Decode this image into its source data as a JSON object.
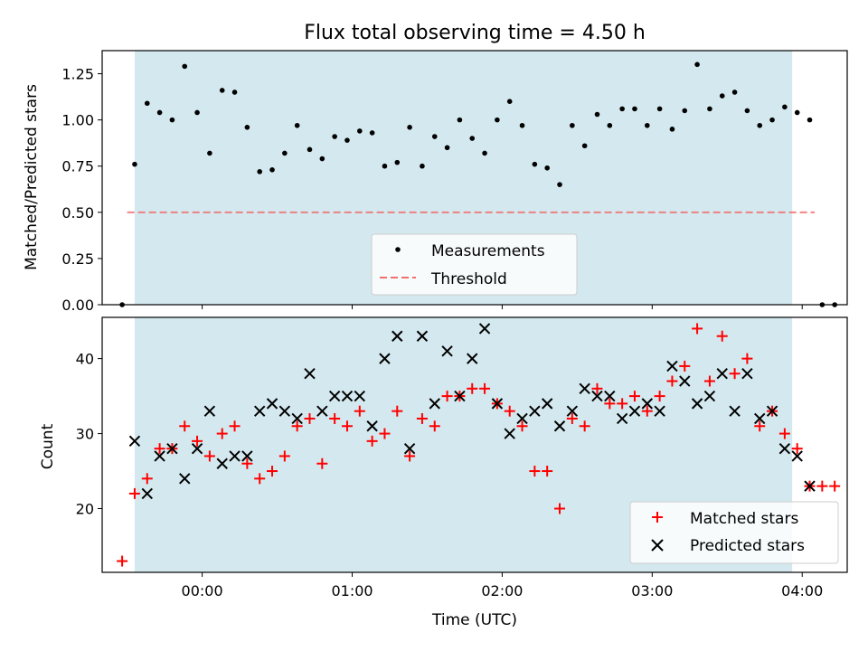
{
  "chart_data": [
    {
      "type": "scatter",
      "title": "Flux total observing time = 4.50 h",
      "ylabel": "Matched/Predicted stars",
      "xlabel": "",
      "ylim": [
        0,
        1.375
      ],
      "x_is_time": true,
      "yticks": [
        "0.00",
        "0.25",
        "0.50",
        "0.75",
        "1.00",
        "1.25"
      ],
      "observing_window": {
        "start": "23:33",
        "end": "03:56",
        "color": "#d4e9ef"
      },
      "threshold": {
        "name": "Threshold",
        "value": 0.5,
        "x_start": "23:30",
        "x_end": "04:05",
        "color": "#f07070"
      },
      "legend": {
        "position": "lower center",
        "entries": [
          "Measurements",
          "Threshold"
        ]
      },
      "series": [
        {
          "name": "Measurements",
          "color": "#000000",
          "points": [
            [
              "23:28",
              0.0
            ],
            [
              "23:33",
              0.76
            ],
            [
              "23:38",
              1.09
            ],
            [
              "23:43",
              1.04
            ],
            [
              "23:48",
              1.0
            ],
            [
              "23:53",
              1.29
            ],
            [
              "23:58",
              1.04
            ],
            [
              "00:03",
              0.82
            ],
            [
              "00:08",
              1.16
            ],
            [
              "00:13",
              1.15
            ],
            [
              "00:18",
              0.96
            ],
            [
              "00:23",
              0.72
            ],
            [
              "00:28",
              0.73
            ],
            [
              "00:33",
              0.82
            ],
            [
              "00:38",
              0.97
            ],
            [
              "00:43",
              0.84
            ],
            [
              "00:48",
              0.79
            ],
            [
              "00:53",
              0.91
            ],
            [
              "00:58",
              0.89
            ],
            [
              "01:03",
              0.94
            ],
            [
              "01:08",
              0.93
            ],
            [
              "01:13",
              0.75
            ],
            [
              "01:18",
              0.77
            ],
            [
              "01:23",
              0.96
            ],
            [
              "01:28",
              0.75
            ],
            [
              "01:33",
              0.91
            ],
            [
              "01:38",
              0.85
            ],
            [
              "01:43",
              1.0
            ],
            [
              "01:48",
              0.9
            ],
            [
              "01:53",
              0.82
            ],
            [
              "01:58",
              1.0
            ],
            [
              "02:03",
              1.1
            ],
            [
              "02:08",
              0.97
            ],
            [
              "02:13",
              0.76
            ],
            [
              "02:18",
              0.74
            ],
            [
              "02:23",
              0.65
            ],
            [
              "02:28",
              0.97
            ],
            [
              "02:33",
              0.86
            ],
            [
              "02:38",
              1.03
            ],
            [
              "02:43",
              0.97
            ],
            [
              "02:48",
              1.06
            ],
            [
              "02:53",
              1.06
            ],
            [
              "02:58",
              0.97
            ],
            [
              "03:03",
              1.06
            ],
            [
              "03:08",
              0.95
            ],
            [
              "03:13",
              1.05
            ],
            [
              "03:18",
              1.3
            ],
            [
              "03:23",
              1.06
            ],
            [
              "03:28",
              1.13
            ],
            [
              "03:33",
              1.15
            ],
            [
              "03:38",
              1.05
            ],
            [
              "03:43",
              0.97
            ],
            [
              "03:48",
              1.0
            ],
            [
              "03:53",
              1.07
            ],
            [
              "03:58",
              1.04
            ],
            [
              "04:03",
              1.0
            ],
            [
              "04:08",
              0.0
            ],
            [
              "04:13",
              0.0
            ]
          ]
        }
      ]
    },
    {
      "type": "scatter",
      "title": "",
      "ylabel": "Count",
      "xlabel": "Time (UTC)",
      "ylim": [
        11.5,
        45.5
      ],
      "yticks": [
        "20",
        "30",
        "40"
      ],
      "xticks": [
        "00:00",
        "01:00",
        "02:00",
        "03:00",
        "04:00"
      ],
      "observing_window": {
        "start": "23:33",
        "end": "03:56",
        "color": "#d4e9ef"
      },
      "legend": {
        "position": "lower right",
        "entries": [
          "Matched stars",
          "Predicted stars"
        ]
      },
      "series": [
        {
          "name": "Matched stars",
          "color": "#ff0000",
          "marker": "plus",
          "points": [
            [
              "23:28",
              13
            ],
            [
              "23:33",
              22
            ],
            [
              "23:38",
              24
            ],
            [
              "23:43",
              28
            ],
            [
              "23:48",
              28
            ],
            [
              "23:53",
              31
            ],
            [
              "23:58",
              29
            ],
            [
              "00:03",
              27
            ],
            [
              "00:08",
              30
            ],
            [
              "00:13",
              31
            ],
            [
              "00:18",
              26
            ],
            [
              "00:23",
              24
            ],
            [
              "00:28",
              25
            ],
            [
              "00:33",
              27
            ],
            [
              "00:38",
              31
            ],
            [
              "00:43",
              32
            ],
            [
              "00:48",
              26
            ],
            [
              "00:53",
              32
            ],
            [
              "00:58",
              31
            ],
            [
              "01:03",
              33
            ],
            [
              "01:08",
              29
            ],
            [
              "01:13",
              30
            ],
            [
              "01:18",
              33
            ],
            [
              "01:23",
              27
            ],
            [
              "01:28",
              32
            ],
            [
              "01:33",
              31
            ],
            [
              "01:38",
              35
            ],
            [
              "01:43",
              35
            ],
            [
              "01:48",
              36
            ],
            [
              "01:53",
              36
            ],
            [
              "01:58",
              34
            ],
            [
              "02:03",
              33
            ],
            [
              "02:08",
              31
            ],
            [
              "02:13",
              25
            ],
            [
              "02:18",
              25
            ],
            [
              "02:23",
              20
            ],
            [
              "02:28",
              32
            ],
            [
              "02:33",
              31
            ],
            [
              "02:38",
              36
            ],
            [
              "02:43",
              34
            ],
            [
              "02:48",
              34
            ],
            [
              "02:53",
              35
            ],
            [
              "02:58",
              33
            ],
            [
              "03:03",
              35
            ],
            [
              "03:08",
              37
            ],
            [
              "03:13",
              39
            ],
            [
              "03:18",
              44
            ],
            [
              "03:23",
              37
            ],
            [
              "03:28",
              43
            ],
            [
              "03:33",
              38
            ],
            [
              "03:38",
              40
            ],
            [
              "03:43",
              31
            ],
            [
              "03:48",
              33
            ],
            [
              "03:53",
              30
            ],
            [
              "03:58",
              28
            ],
            [
              "04:03",
              23
            ],
            [
              "04:08",
              23
            ],
            [
              "04:13",
              23
            ]
          ]
        },
        {
          "name": "Predicted stars",
          "color": "#000000",
          "marker": "x",
          "points": [
            [
              "23:33",
              29
            ],
            [
              "23:38",
              22
            ],
            [
              "23:43",
              27
            ],
            [
              "23:48",
              28
            ],
            [
              "23:53",
              24
            ],
            [
              "23:58",
              28
            ],
            [
              "00:03",
              33
            ],
            [
              "00:08",
              26
            ],
            [
              "00:13",
              27
            ],
            [
              "00:18",
              27
            ],
            [
              "00:23",
              33
            ],
            [
              "00:28",
              34
            ],
            [
              "00:33",
              33
            ],
            [
              "00:38",
              32
            ],
            [
              "00:43",
              38
            ],
            [
              "00:48",
              33
            ],
            [
              "00:53",
              35
            ],
            [
              "00:58",
              35
            ],
            [
              "01:03",
              35
            ],
            [
              "01:08",
              31
            ],
            [
              "01:13",
              40
            ],
            [
              "01:18",
              43
            ],
            [
              "01:23",
              28
            ],
            [
              "01:28",
              43
            ],
            [
              "01:33",
              34
            ],
            [
              "01:38",
              41
            ],
            [
              "01:43",
              35
            ],
            [
              "01:48",
              40
            ],
            [
              "01:53",
              44
            ],
            [
              "01:58",
              34
            ],
            [
              "02:03",
              30
            ],
            [
              "02:08",
              32
            ],
            [
              "02:13",
              33
            ],
            [
              "02:18",
              34
            ],
            [
              "02:23",
              31
            ],
            [
              "02:28",
              33
            ],
            [
              "02:33",
              36
            ],
            [
              "02:38",
              35
            ],
            [
              "02:43",
              35
            ],
            [
              "02:48",
              32
            ],
            [
              "02:53",
              33
            ],
            [
              "02:58",
              34
            ],
            [
              "03:03",
              33
            ],
            [
              "03:08",
              39
            ],
            [
              "03:13",
              37
            ],
            [
              "03:18",
              34
            ],
            [
              "03:23",
              35
            ],
            [
              "03:28",
              38
            ],
            [
              "03:33",
              33
            ],
            [
              "03:38",
              38
            ],
            [
              "03:43",
              32
            ],
            [
              "03:48",
              33
            ],
            [
              "03:53",
              28
            ],
            [
              "03:58",
              27
            ],
            [
              "04:03",
              23
            ]
          ]
        }
      ]
    }
  ]
}
